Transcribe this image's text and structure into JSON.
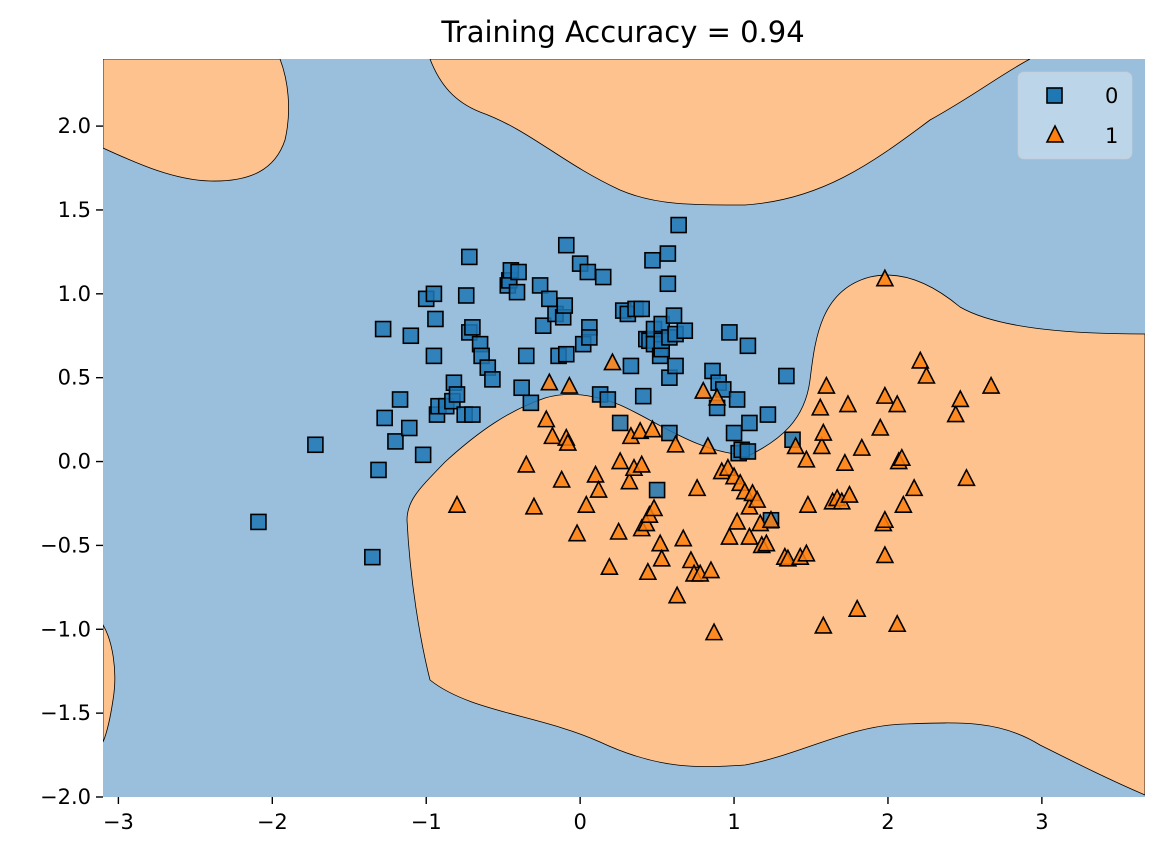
{
  "chart_data": {
    "type": "scatter",
    "title": "Training Accuracy = 0.94",
    "xlabel": "",
    "ylabel": "",
    "xlim": [
      -3.1,
      3.67
    ],
    "ylim": [
      -2.0,
      2.4
    ],
    "x_ticks": [
      -3,
      -2,
      -1,
      0,
      1,
      2,
      3
    ],
    "x_tick_labels": [
      "−3",
      "−2",
      "−1",
      "0",
      "1",
      "2",
      "3"
    ],
    "y_ticks": [
      -2.0,
      -1.5,
      -1.0,
      -0.5,
      0.0,
      0.5,
      1.0,
      1.5,
      2.0
    ],
    "y_tick_labels": [
      "−2.0",
      "−1.5",
      "−1.0",
      "−0.5",
      "0.0",
      "0.5",
      "1.0",
      "1.5",
      "2.0"
    ],
    "grid": false,
    "legend_position": "top-right",
    "decision_region_colors": {
      "0": "#9abfdc",
      "1": "#fec28e"
    },
    "marker_colors": {
      "0": "#1f77b4",
      "1": "#ff7f0e"
    },
    "series": [
      {
        "name": "0",
        "marker": "square",
        "points": [
          [
            -2.09,
            -0.36
          ],
          [
            -1.72,
            0.1
          ],
          [
            -1.35,
            -0.57
          ],
          [
            -1.31,
            -0.05
          ],
          [
            -1.28,
            0.79
          ],
          [
            -1.27,
            0.26
          ],
          [
            -1.2,
            0.12
          ],
          [
            -1.17,
            0.37
          ],
          [
            -1.11,
            0.2
          ],
          [
            -1.1,
            0.75
          ],
          [
            -1.02,
            0.04
          ],
          [
            -1.0,
            0.97
          ],
          [
            -0.95,
            1.0
          ],
          [
            -0.95,
            0.63
          ],
          [
            -0.94,
            0.85
          ],
          [
            -0.93,
            0.28
          ],
          [
            -0.92,
            0.33
          ],
          [
            -0.87,
            0.33
          ],
          [
            -0.83,
            0.36
          ],
          [
            -0.82,
            0.47
          ],
          [
            -0.8,
            0.4
          ],
          [
            -0.75,
            0.28
          ],
          [
            -0.7,
            0.28
          ],
          [
            -0.74,
            0.99
          ],
          [
            -0.72,
            1.22
          ],
          [
            -0.72,
            0.77
          ],
          [
            -0.7,
            0.8
          ],
          [
            -0.65,
            0.7
          ],
          [
            -0.64,
            0.63
          ],
          [
            -0.6,
            0.56
          ],
          [
            -0.57,
            0.49
          ],
          [
            -0.47,
            1.05
          ],
          [
            -0.46,
            1.08
          ],
          [
            -0.45,
            1.14
          ],
          [
            -0.4,
            1.13
          ],
          [
            -0.41,
            1.01
          ],
          [
            -0.38,
            0.44
          ],
          [
            -0.35,
            0.63
          ],
          [
            -0.32,
            0.35
          ],
          [
            -0.26,
            1.05
          ],
          [
            -0.24,
            0.81
          ],
          [
            -0.2,
            0.97
          ],
          [
            -0.16,
            0.88
          ],
          [
            -0.14,
            0.63
          ],
          [
            -0.11,
            0.86
          ],
          [
            -0.1,
            0.93
          ],
          [
            -0.09,
            0.64
          ],
          [
            -0.09,
            1.29
          ],
          [
            0.0,
            1.18
          ],
          [
            0.02,
            0.7
          ],
          [
            0.05,
            1.13
          ],
          [
            0.06,
            0.8
          ],
          [
            0.06,
            0.74
          ],
          [
            0.13,
            0.4
          ],
          [
            0.15,
            1.1
          ],
          [
            0.18,
            0.37
          ],
          [
            0.26,
            0.23
          ],
          [
            0.28,
            0.9
          ],
          [
            0.31,
            0.88
          ],
          [
            0.33,
            0.57
          ],
          [
            0.36,
            0.91
          ],
          [
            0.4,
            0.91
          ],
          [
            0.41,
            0.39
          ],
          [
            0.43,
            0.73
          ],
          [
            0.45,
            0.72
          ],
          [
            0.48,
            0.79
          ],
          [
            0.48,
            0.7
          ],
          [
            0.47,
            1.2
          ],
          [
            0.52,
            0.63
          ],
          [
            0.53,
            0.67
          ],
          [
            0.53,
            0.82
          ],
          [
            0.53,
            0.72
          ],
          [
            0.57,
            1.24
          ],
          [
            0.57,
            1.06
          ],
          [
            0.58,
            0.74
          ],
          [
            0.58,
            0.5
          ],
          [
            0.58,
            0.17
          ],
          [
            0.61,
            0.87
          ],
          [
            0.62,
            0.76
          ],
          [
            0.62,
            0.57
          ],
          [
            0.64,
            1.41
          ],
          [
            0.68,
            0.78
          ],
          [
            0.86,
            0.54
          ],
          [
            0.89,
            0.32
          ],
          [
            0.9,
            0.47
          ],
          [
            0.93,
            0.43
          ],
          [
            0.97,
            0.77
          ],
          [
            1.0,
            0.17
          ],
          [
            1.02,
            0.37
          ],
          [
            1.03,
            0.05
          ],
          [
            1.05,
            0.07
          ],
          [
            1.09,
            0.06
          ],
          [
            1.1,
            0.23
          ],
          [
            1.09,
            0.69
          ],
          [
            1.22,
            0.28
          ],
          [
            1.24,
            -0.35
          ],
          [
            1.34,
            0.51
          ],
          [
            1.38,
            0.13
          ],
          [
            0.5,
            -0.17
          ]
        ]
      },
      {
        "name": "1",
        "marker": "triangle",
        "points": [
          [
            -0.8,
            -0.26
          ],
          [
            -0.35,
            -0.02
          ],
          [
            -0.3,
            -0.27
          ],
          [
            -0.22,
            0.25
          ],
          [
            -0.2,
            0.47
          ],
          [
            -0.18,
            0.15
          ],
          [
            -0.12,
            -0.11
          ],
          [
            -0.09,
            0.14
          ],
          [
            -0.08,
            0.11
          ],
          [
            -0.07,
            0.45
          ],
          [
            -0.02,
            -0.43
          ],
          [
            0.04,
            -0.26
          ],
          [
            0.1,
            -0.08
          ],
          [
            0.12,
            -0.17
          ],
          [
            0.19,
            -0.63
          ],
          [
            0.21,
            0.59
          ],
          [
            0.25,
            -0.42
          ],
          [
            0.26,
            0.0
          ],
          [
            0.32,
            -0.12
          ],
          [
            0.33,
            0.15
          ],
          [
            0.35,
            -0.04
          ],
          [
            0.39,
            0.18
          ],
          [
            0.4,
            -0.4
          ],
          [
            0.4,
            -0.02
          ],
          [
            0.43,
            -0.37
          ],
          [
            0.44,
            -0.66
          ],
          [
            0.45,
            -0.32
          ],
          [
            0.47,
            0.19
          ],
          [
            0.48,
            -0.28
          ],
          [
            0.52,
            -0.49
          ],
          [
            0.53,
            -0.58
          ],
          [
            0.62,
            0.1
          ],
          [
            0.63,
            -0.8
          ],
          [
            0.67,
            -0.46
          ],
          [
            0.72,
            -0.59
          ],
          [
            0.74,
            -0.67
          ],
          [
            0.76,
            -0.16
          ],
          [
            0.78,
            -0.67
          ],
          [
            0.8,
            0.42
          ],
          [
            0.83,
            0.09
          ],
          [
            0.85,
            -0.65
          ],
          [
            0.87,
            -1.02
          ],
          [
            0.89,
            0.38
          ],
          [
            0.92,
            -0.06
          ],
          [
            0.96,
            -0.04
          ],
          [
            0.97,
            -0.45
          ],
          [
            1.0,
            -0.09
          ],
          [
            1.02,
            -0.36
          ],
          [
            1.04,
            -0.13
          ],
          [
            1.07,
            -0.18
          ],
          [
            1.1,
            -0.27
          ],
          [
            1.12,
            -0.19
          ],
          [
            1.1,
            -0.45
          ],
          [
            1.15,
            -0.23
          ],
          [
            1.17,
            -0.37
          ],
          [
            1.18,
            -0.5
          ],
          [
            1.21,
            -0.49
          ],
          [
            1.24,
            -0.35
          ],
          [
            1.33,
            -0.57
          ],
          [
            1.35,
            -0.58
          ],
          [
            1.4,
            0.09
          ],
          [
            1.43,
            -0.57
          ],
          [
            1.47,
            0.01
          ],
          [
            1.47,
            -0.55
          ],
          [
            1.48,
            -0.26
          ],
          [
            1.56,
            0.32
          ],
          [
            1.57,
            0.09
          ],
          [
            1.58,
            0.17
          ],
          [
            1.58,
            -0.98
          ],
          [
            1.6,
            0.45
          ],
          [
            1.64,
            -0.24
          ],
          [
            1.67,
            -0.22
          ],
          [
            1.7,
            -0.24
          ],
          [
            1.72,
            -0.01
          ],
          [
            1.74,
            0.34
          ],
          [
            1.75,
            -0.2
          ],
          [
            1.8,
            -0.88
          ],
          [
            1.83,
            0.08
          ],
          [
            1.95,
            0.2
          ],
          [
            1.97,
            -0.37
          ],
          [
            1.98,
            -0.35
          ],
          [
            1.98,
            -0.56
          ],
          [
            1.98,
            0.39
          ],
          [
            1.98,
            1.09
          ],
          [
            2.06,
            0.34
          ],
          [
            2.07,
            0.0
          ],
          [
            2.09,
            0.02
          ],
          [
            2.1,
            -0.26
          ],
          [
            2.17,
            -0.16
          ],
          [
            2.21,
            0.6
          ],
          [
            2.25,
            0.51
          ],
          [
            2.44,
            0.28
          ],
          [
            2.47,
            0.37
          ],
          [
            2.51,
            -0.1
          ],
          [
            2.67,
            0.45
          ],
          [
            2.06,
            -0.97
          ]
        ]
      }
    ]
  }
}
